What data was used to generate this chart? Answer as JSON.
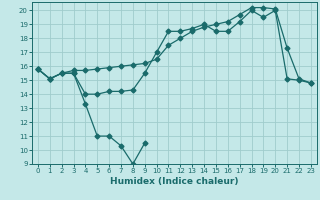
{
  "xlabel": "Humidex (Indice chaleur)",
  "background_color": "#c4e8e8",
  "grid_color": "#a0cccc",
  "line_color": "#1a6b6b",
  "xlim": [
    -0.5,
    23.5
  ],
  "ylim": [
    9,
    20.6
  ],
  "yticks": [
    9,
    10,
    11,
    12,
    13,
    14,
    15,
    16,
    17,
    18,
    19,
    20
  ],
  "xticks": [
    0,
    1,
    2,
    3,
    4,
    5,
    6,
    7,
    8,
    9,
    10,
    11,
    12,
    13,
    14,
    15,
    16,
    17,
    18,
    19,
    20,
    21,
    22,
    23
  ],
  "line1_x": [
    0,
    1,
    2,
    3,
    4,
    5,
    6,
    7,
    8,
    9
  ],
  "line1_y": [
    15.8,
    15.1,
    15.5,
    15.5,
    13.3,
    11.0,
    11.0,
    10.3,
    9.0,
    10.5
  ],
  "line2_x": [
    0,
    1,
    2,
    3,
    4,
    5,
    6,
    7,
    8,
    9,
    10,
    11,
    12,
    13,
    14,
    15,
    16,
    17,
    18,
    19,
    20,
    21,
    22,
    23
  ],
  "line2_y": [
    15.8,
    15.1,
    15.5,
    15.5,
    14.0,
    14.0,
    14.2,
    14.2,
    14.3,
    15.5,
    17.0,
    18.5,
    18.5,
    18.7,
    19.0,
    18.5,
    18.5,
    19.2,
    20.0,
    19.5,
    20.0,
    15.1,
    15.0,
    14.8
  ],
  "line3_x": [
    0,
    1,
    2,
    3,
    4,
    5,
    6,
    7,
    8,
    9,
    10,
    11,
    12,
    13,
    14,
    15,
    16,
    17,
    18,
    19,
    20,
    21,
    22,
    23
  ],
  "line3_y": [
    15.8,
    15.1,
    15.5,
    15.7,
    15.7,
    15.8,
    15.9,
    16.0,
    16.1,
    16.2,
    16.5,
    17.5,
    18.0,
    18.5,
    18.8,
    19.0,
    19.2,
    19.7,
    20.2,
    20.2,
    20.1,
    17.3,
    15.1,
    14.8
  ]
}
